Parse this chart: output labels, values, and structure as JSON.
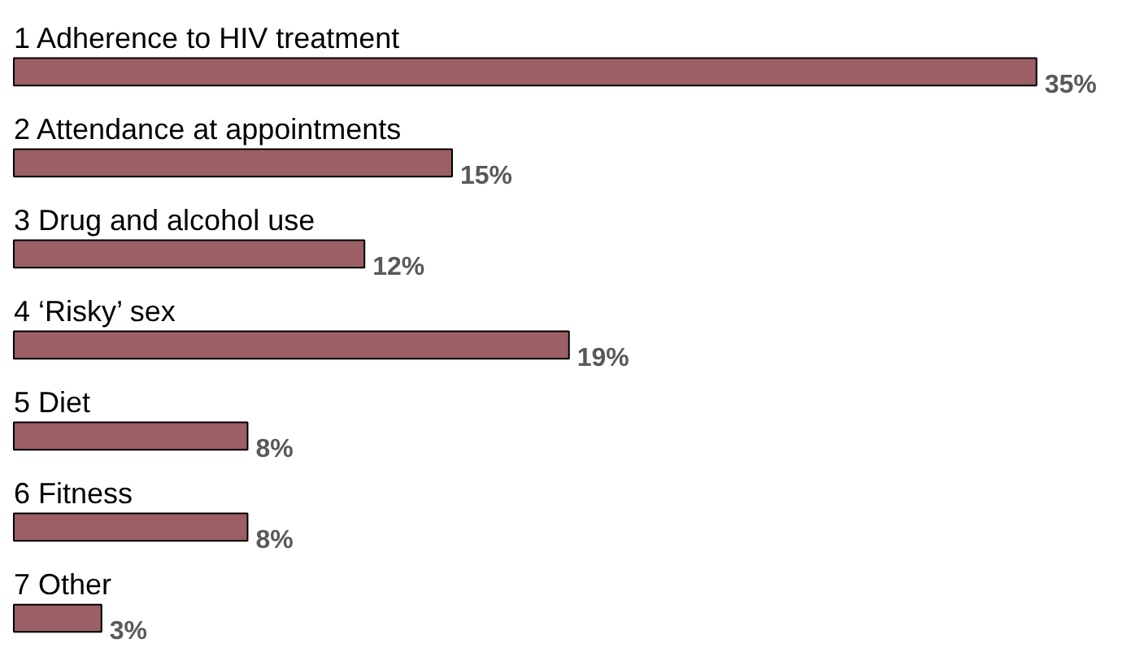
{
  "chart_data": {
    "type": "bar",
    "orientation": "horizontal",
    "categories": [
      "1   Adherence to HIV treatment",
      "2   Attendance at appointments",
      "3   Drug and alcohol use",
      "4   ‘Risky’ sex",
      "5   Diet",
      "6   Fitness",
      "7   Other"
    ],
    "values": [
      35,
      15,
      12,
      19,
      8,
      8,
      3
    ],
    "value_labels": [
      "35%",
      "15%",
      "12%",
      "19%",
      "8%",
      "8%",
      "3%"
    ],
    "color": "#9c5f66",
    "grid": false
  }
}
